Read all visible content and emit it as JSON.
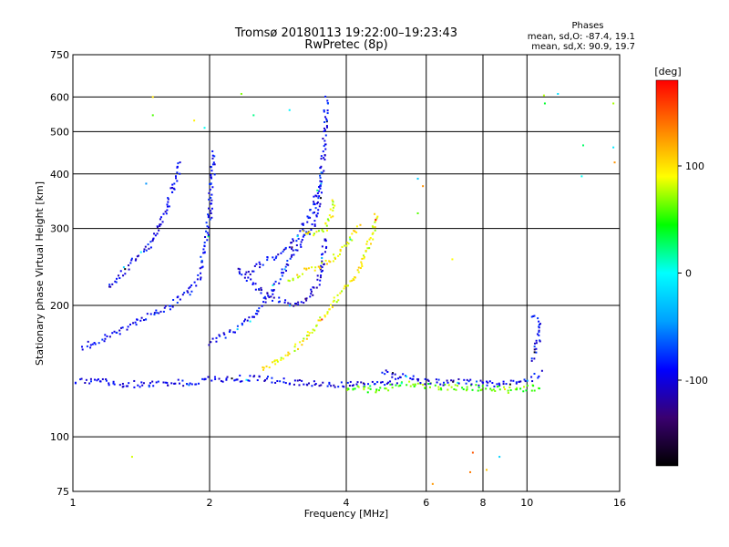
{
  "chart_data": {
    "type": "scatter",
    "title": "Tromsø 20180113 19:22:00–19:23:43",
    "subtitle": "RwPretec (8p)",
    "xlabel": "Frequency [MHz]",
    "ylabel": "Stationary phase Virtual Height [km]",
    "x_scale": "log",
    "y_scale": "log",
    "xlim": [
      1,
      16
    ],
    "ylim": [
      75,
      750
    ],
    "x_ticks": [
      1,
      2,
      4,
      6,
      8,
      10,
      16
    ],
    "y_ticks": [
      75,
      100,
      200,
      300,
      400,
      500,
      600,
      750
    ],
    "grid": true,
    "stats": {
      "title": "Phases",
      "line_o": "mean, sd,O: -87.4, 19.1",
      "line_x": "mean, sd,X:  90.9, 19.7"
    },
    "colorbar": {
      "label": "[deg]",
      "range": [
        -180,
        180
      ],
      "ticks": [
        100,
        0,
        -100
      ],
      "colors": [
        "#000000",
        "#3a0070",
        "#0000ff",
        "#00a0ff",
        "#00ffff",
        "#00ff00",
        "#ffff00",
        "#ff8000",
        "#ff0000"
      ]
    },
    "series": [
      {
        "name": "",
        "kind": "trace",
        "points": [
          [
            1.0,
            135
          ],
          [
            1.1,
            134
          ],
          [
            1.2,
            133
          ],
          [
            1.3,
            132
          ],
          [
            1.4,
            132
          ],
          [
            1.5,
            132
          ],
          [
            1.6,
            132
          ],
          [
            1.7,
            133
          ],
          [
            1.8,
            133
          ],
          [
            1.9,
            134
          ],
          [
            2.0,
            135
          ],
          [
            2.2,
            136
          ],
          [
            2.5,
            136
          ],
          [
            2.8,
            135
          ],
          [
            3.2,
            133
          ],
          [
            3.6,
            131
          ],
          [
            4.0,
            132
          ],
          [
            4.6,
            133
          ],
          [
            5.2,
            134
          ]
        ],
        "phase": -95
      },
      {
        "name": "",
        "kind": "trace",
        "points": [
          [
            1.05,
            160
          ],
          [
            1.2,
            170
          ],
          [
            1.35,
            180
          ],
          [
            1.5,
            190
          ],
          [
            1.65,
            200
          ],
          [
            1.8,
            215
          ],
          [
            1.9,
            235
          ],
          [
            1.95,
            270
          ],
          [
            2.0,
            320
          ],
          [
            2.02,
            380
          ],
          [
            2.05,
            450
          ]
        ],
        "phase": -90
      },
      {
        "name": "",
        "kind": "trace",
        "points": [
          [
            1.2,
            220
          ],
          [
            1.35,
            250
          ],
          [
            1.5,
            280
          ],
          [
            1.6,
            330
          ],
          [
            1.7,
            400
          ],
          [
            1.72,
            430
          ]
        ],
        "phase": -95
      },
      {
        "name": "",
        "kind": "trace",
        "points": [
          [
            2.0,
            165
          ],
          [
            2.2,
            172
          ],
          [
            2.4,
            182
          ],
          [
            2.55,
            195
          ],
          [
            2.7,
            210
          ],
          [
            2.85,
            230
          ],
          [
            3.0,
            255
          ],
          [
            3.2,
            280
          ],
          [
            3.4,
            310
          ],
          [
            3.5,
            360
          ],
          [
            3.55,
            430
          ],
          [
            3.6,
            510
          ],
          [
            3.62,
            600
          ]
        ],
        "phase": -90
      },
      {
        "name": "",
        "kind": "trace",
        "points": [
          [
            2.3,
            240
          ],
          [
            2.5,
            222
          ],
          [
            2.7,
            210
          ],
          [
            2.9,
            203
          ],
          [
            3.1,
            202
          ],
          [
            3.3,
            208
          ],
          [
            3.45,
            222
          ],
          [
            3.55,
            250
          ],
          [
            3.6,
            290
          ]
        ],
        "phase": -100
      },
      {
        "name": "",
        "kind": "trace",
        "points": [
          [
            2.4,
            235
          ],
          [
            2.6,
            250
          ],
          [
            2.8,
            260
          ],
          [
            3.0,
            270
          ],
          [
            3.2,
            300
          ],
          [
            3.4,
            340
          ],
          [
            3.5,
            380
          ]
        ],
        "phase": -95
      },
      {
        "name": "",
        "kind": "trace",
        "points": [
          [
            2.6,
            143
          ],
          [
            2.8,
            148
          ],
          [
            3.0,
            156
          ],
          [
            3.2,
            165
          ],
          [
            3.4,
            178
          ],
          [
            3.6,
            192
          ],
          [
            3.8,
            205
          ],
          [
            4.0,
            220
          ],
          [
            4.2,
            235
          ],
          [
            4.4,
            255
          ],
          [
            4.5,
            280
          ],
          [
            4.6,
            300
          ],
          [
            4.65,
            330
          ]
        ],
        "phase": 90
      },
      {
        "name": "",
        "kind": "trace",
        "points": [
          [
            3.0,
            230
          ],
          [
            3.3,
            240
          ],
          [
            3.6,
            250
          ],
          [
            3.9,
            265
          ],
          [
            4.1,
            285
          ],
          [
            4.3,
            305
          ]
        ],
        "phase": 95
      },
      {
        "name": "",
        "kind": "trace",
        "points": [
          [
            3.2,
            295
          ],
          [
            3.4,
            290
          ],
          [
            3.6,
            300
          ],
          [
            3.7,
            320
          ],
          [
            3.75,
            350
          ]
        ],
        "phase": 85
      },
      {
        "name": "",
        "kind": "trace",
        "points": [
          [
            4.0,
            130
          ],
          [
            4.5,
            128
          ],
          [
            5.0,
            130
          ],
          [
            5.5,
            132
          ],
          [
            6.0,
            131
          ],
          [
            6.6,
            130
          ],
          [
            7.2,
            129
          ],
          [
            8.0,
            130
          ],
          [
            9.0,
            128
          ],
          [
            10.0,
            129
          ],
          [
            10.8,
            130
          ]
        ],
        "phase": 60
      },
      {
        "name": "",
        "kind": "trace",
        "points": [
          [
            4.8,
            140
          ],
          [
            5.4,
            137
          ],
          [
            6.0,
            134
          ],
          [
            6.6,
            133
          ],
          [
            7.2,
            134
          ],
          [
            8.0,
            132
          ],
          [
            9.0,
            133
          ],
          [
            10.0,
            135
          ],
          [
            10.8,
            140
          ]
        ],
        "phase": -95
      },
      {
        "name": "",
        "kind": "trace",
        "points": [
          [
            10.2,
            150
          ],
          [
            10.4,
            158
          ],
          [
            10.6,
            165
          ],
          [
            10.7,
            175
          ],
          [
            10.6,
            185
          ],
          [
            10.2,
            190
          ]
        ],
        "phase": -90
      },
      {
        "name": "",
        "kind": "scatter",
        "points": [
          [
            1.5,
            600
          ],
          [
            1.5,
            545
          ],
          [
            1.85,
            530
          ],
          [
            1.95,
            510
          ],
          [
            2.35,
            610
          ],
          [
            2.5,
            545
          ],
          [
            3.0,
            560
          ],
          [
            5.75,
            390
          ],
          [
            5.9,
            375
          ],
          [
            5.75,
            325
          ],
          [
            6.85,
            255
          ],
          [
            6.2,
            78
          ],
          [
            7.6,
            92
          ],
          [
            7.5,
            83
          ],
          [
            8.15,
            84
          ],
          [
            8.7,
            90
          ],
          [
            10.9,
            605
          ],
          [
            10.95,
            580
          ],
          [
            11.7,
            610
          ],
          [
            13.3,
            465
          ],
          [
            13.2,
            395
          ],
          [
            15.5,
            580
          ],
          [
            15.5,
            460
          ],
          [
            15.6,
            425
          ],
          [
            1.45,
            380
          ],
          [
            1.35,
            90
          ]
        ],
        "phase": 50
      }
    ]
  }
}
